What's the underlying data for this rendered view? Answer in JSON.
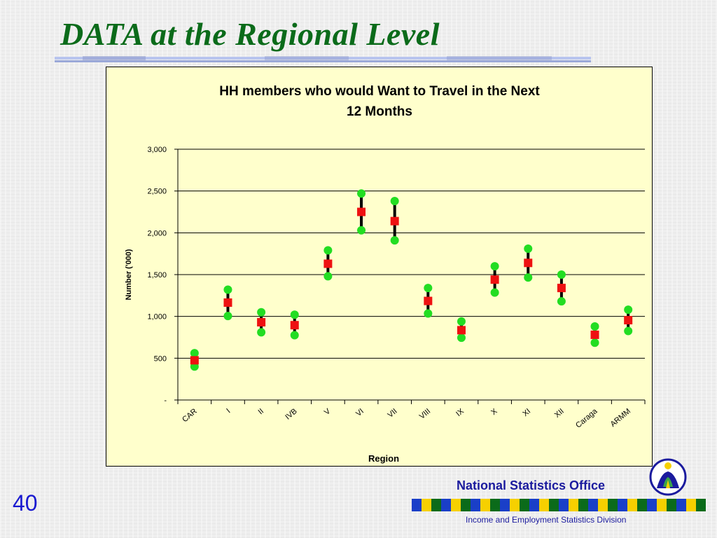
{
  "slide": {
    "title": "DATA at the Regional Level",
    "page_number": "40",
    "org_name": "National Statistics Office",
    "division": "Income and Employment Statistics Division"
  },
  "colors": {
    "title": "#0b6b1a",
    "chart_background": "#ffffcc",
    "marker_low_high": "#22dd22",
    "marker_estimate": "#ee1111",
    "range_bar": "#000000",
    "org_text": "#1b1b9e",
    "page_number": "#1a1ad0",
    "strip_colors": [
      "#1a3fc8",
      "#f6d000",
      "#0b6b1a"
    ]
  },
  "icons": {
    "logo": "nso-logo-icon"
  },
  "chart_data": {
    "type": "scatter",
    "title": "HH members who would Want to Travel in the Next 12 Months",
    "xlabel": "Region",
    "ylabel": "Number ('000)",
    "ylim": [
      0,
      3000
    ],
    "yticks": [
      0,
      500,
      1000,
      1500,
      2000,
      2500,
      3000
    ],
    "ytick_labels": [
      "-",
      "500",
      "1,000",
      "1,500",
      "2,000",
      "2,500",
      "3,000"
    ],
    "grid": true,
    "legend": "none",
    "categories": [
      "CAR",
      "I",
      "II",
      "IVB",
      "V",
      "VI",
      "VII",
      "VIII",
      "IX",
      "X",
      "XI",
      "XII",
      "Caraga",
      "ARMM"
    ],
    "series": [
      {
        "role": "high",
        "marker": "circle",
        "values": [
          560,
          1320,
          1050,
          1020,
          1790,
          2470,
          2380,
          1340,
          940,
          1600,
          1810,
          1500,
          880,
          1080
        ]
      },
      {
        "role": "estimate",
        "marker": "square",
        "values": [
          475,
          1165,
          930,
          895,
          1630,
          2250,
          2140,
          1185,
          835,
          1440,
          1640,
          1340,
          780,
          955
        ]
      },
      {
        "role": "low",
        "marker": "circle",
        "values": [
          400,
          1005,
          810,
          775,
          1480,
          2030,
          1910,
          1035,
          745,
          1285,
          1465,
          1180,
          685,
          825
        ]
      }
    ]
  }
}
